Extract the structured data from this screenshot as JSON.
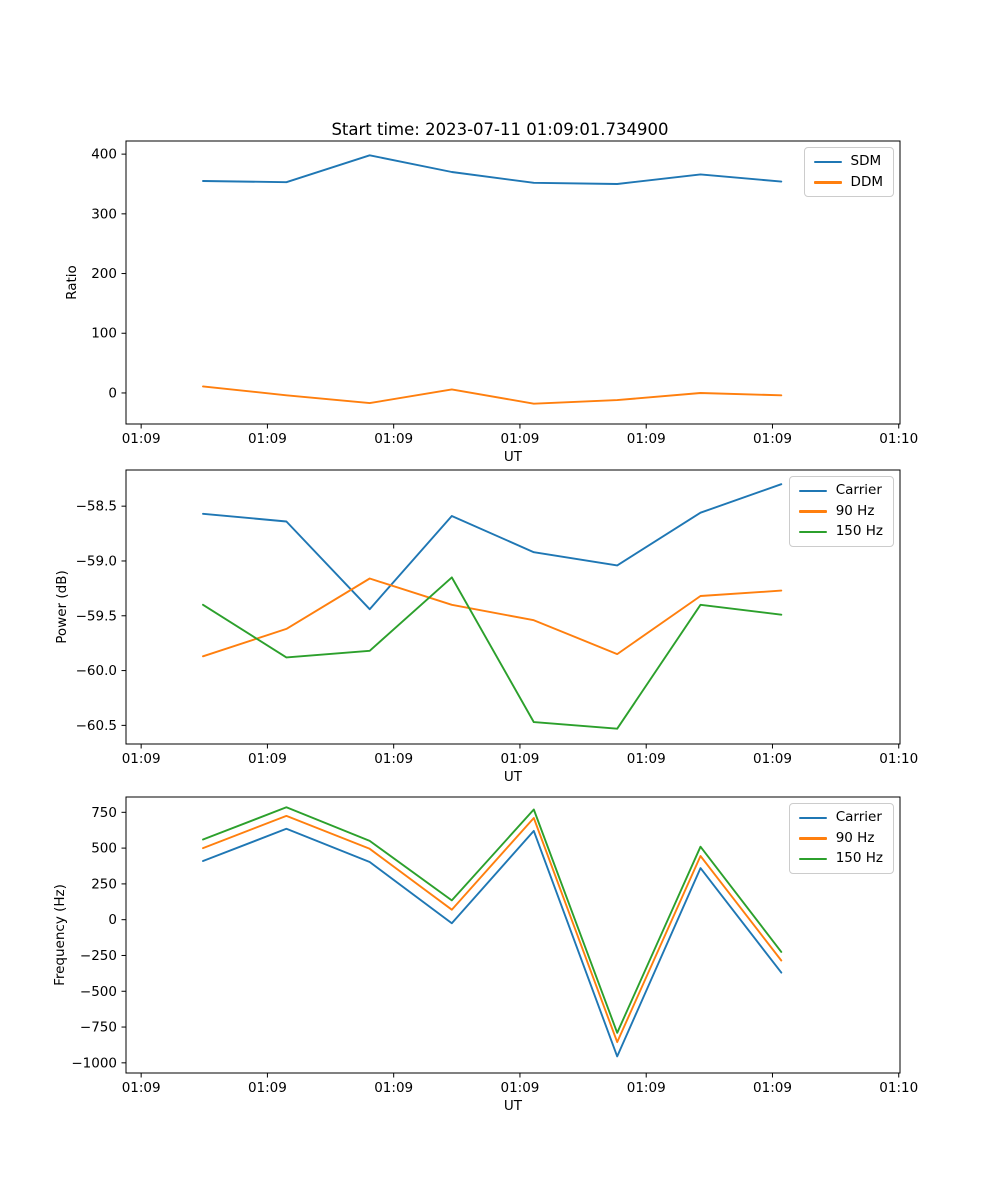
{
  "figure": {
    "title": "Start time: 2023-07-11 01:09:01.734900",
    "background": "#ffffff"
  },
  "colors": {
    "blue": "#1f77b4",
    "orange": "#ff7f0e",
    "green": "#2ca02c",
    "axis": "#000000",
    "legend_border": "#cccccc"
  },
  "chart_data": [
    {
      "type": "line",
      "title": "",
      "xlabel": "UT",
      "ylabel": "Ratio",
      "x_unit": "seconds after 01:09 UT (ticks every 10 s)",
      "x": [
        4.9,
        11.5,
        18.1,
        24.6,
        31.1,
        37.7,
        44.3,
        50.7
      ],
      "xlim": [
        -1.2,
        60.1
      ],
      "xticks": [
        0,
        10,
        20,
        30,
        40,
        50,
        60
      ],
      "xticklabels": [
        "01:09",
        "01:09",
        "01:09",
        "01:09",
        "01:09",
        "01:09",
        "01:10"
      ],
      "ylim": [
        -52,
        422
      ],
      "yticks": [
        0,
        100,
        200,
        300,
        400
      ],
      "yticklabels": [
        "0",
        "100",
        "200",
        "300",
        "400"
      ],
      "grid": false,
      "legend_position": "upper right",
      "series": [
        {
          "name": "SDM",
          "color": "#1f77b4",
          "values": [
            355,
            353,
            398,
            370,
            352,
            350,
            366,
            354
          ]
        },
        {
          "name": "DDM",
          "color": "#ff7f0e",
          "values": [
            11,
            -4,
            -17,
            6,
            -18,
            -12,
            0,
            -4
          ]
        }
      ]
    },
    {
      "type": "line",
      "title": "",
      "xlabel": "UT",
      "ylabel": "Power (dB)",
      "x_unit": "seconds after 01:09 UT (ticks every 10 s)",
      "x": [
        4.9,
        11.5,
        18.1,
        24.6,
        31.1,
        37.7,
        44.3,
        50.7
      ],
      "xlim": [
        -1.2,
        60.1
      ],
      "xticks": [
        0,
        10,
        20,
        30,
        40,
        50,
        60
      ],
      "xticklabels": [
        "01:09",
        "01:09",
        "01:09",
        "01:09",
        "01:09",
        "01:09",
        "01:10"
      ],
      "ylim": [
        -60.67,
        -58.17
      ],
      "yticks": [
        -58.5,
        -59.0,
        -59.5,
        -60.0,
        -60.5
      ],
      "yticklabels": [
        "−58.5",
        "−59.0",
        "−59.5",
        "−60.0",
        "−60.5"
      ],
      "grid": false,
      "legend_position": "upper right",
      "series": [
        {
          "name": "Carrier",
          "color": "#1f77b4",
          "values": [
            -58.57,
            -58.64,
            -59.44,
            -58.59,
            -58.92,
            -59.04,
            -58.56,
            -58.3
          ]
        },
        {
          "name": "90 Hz",
          "color": "#ff7f0e",
          "values": [
            -59.87,
            -59.62,
            -59.16,
            -59.4,
            -59.54,
            -59.85,
            -59.32,
            -59.27
          ]
        },
        {
          "name": "150 Hz",
          "color": "#2ca02c",
          "values": [
            -59.4,
            -59.88,
            -59.82,
            -59.15,
            -60.47,
            -60.53,
            -59.4,
            -59.49
          ]
        }
      ]
    },
    {
      "type": "line",
      "title": "",
      "xlabel": "UT",
      "ylabel": "Frequency (Hz)",
      "x_unit": "seconds after 01:09 UT (ticks every 10 s)",
      "x": [
        4.9,
        11.5,
        18.1,
        24.6,
        31.1,
        37.7,
        44.3,
        50.7
      ],
      "xlim": [
        -1.2,
        60.1
      ],
      "xticks": [
        0,
        10,
        20,
        30,
        40,
        50,
        60
      ],
      "xticklabels": [
        "01:09",
        "01:09",
        "01:09",
        "01:09",
        "01:09",
        "01:09",
        "01:10"
      ],
      "ylim": [
        -1071,
        857
      ],
      "yticks": [
        750,
        500,
        250,
        0,
        -250,
        -500,
        -750,
        -1000
      ],
      "yticklabels": [
        "750",
        "500",
        "250",
        "0",
        "−250",
        "−500",
        "−750",
        "−1000"
      ],
      "grid": false,
      "legend_position": "upper right",
      "series": [
        {
          "name": "Carrier",
          "color": "#1f77b4",
          "values": [
            410,
            635,
            403,
            -25,
            620,
            -955,
            360,
            -370
          ]
        },
        {
          "name": "90 Hz",
          "color": "#ff7f0e",
          "values": [
            500,
            725,
            495,
            70,
            710,
            -855,
            445,
            -285
          ]
        },
        {
          "name": "150 Hz",
          "color": "#2ca02c",
          "values": [
            560,
            785,
            550,
            135,
            770,
            -790,
            510,
            -225
          ]
        }
      ]
    }
  ]
}
